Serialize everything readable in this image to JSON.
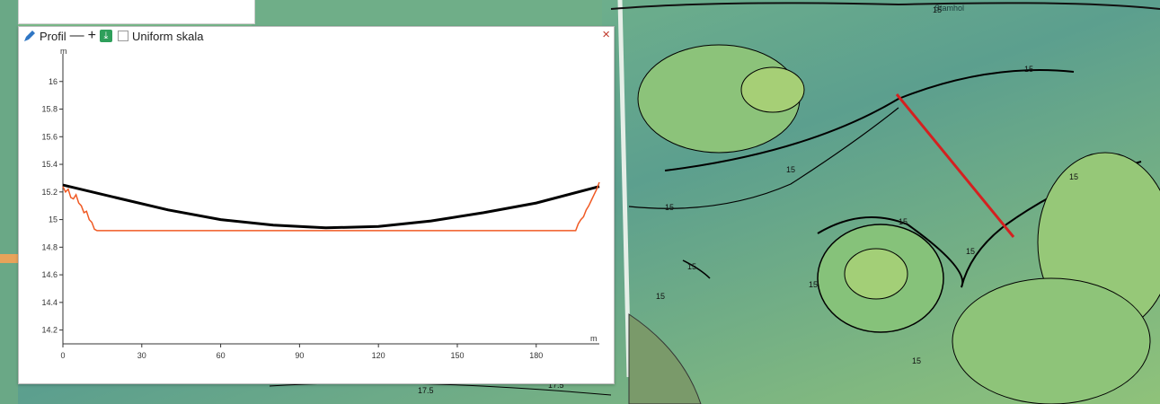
{
  "profile_panel": {
    "title": "Profil",
    "zoom_out_symbol": "—",
    "zoom_in_symbol": "+",
    "uniform_scale_label": "Uniform skala",
    "uniform_scale_checked": false,
    "icons": {
      "edit": "pencil-icon",
      "download": "download-icon",
      "close": "close-icon"
    },
    "close_symbol": "×"
  },
  "chart_data": {
    "type": "line",
    "ylabel": "m",
    "xlabel": "m",
    "xlim": [
      0,
      204
    ],
    "ylim": [
      14.1,
      16.2
    ],
    "x_ticks": [
      0,
      30,
      60,
      90,
      120,
      150,
      180
    ],
    "y_ticks": [
      14.2,
      14.4,
      14.6,
      14.8,
      15,
      15.2,
      15.4,
      15.6,
      15.8,
      16
    ],
    "series": [
      {
        "color": "#000000",
        "x": [
          0,
          20,
          40,
          60,
          80,
          100,
          120,
          140,
          160,
          180,
          204
        ],
        "y": [
          15.25,
          15.16,
          15.07,
          15.0,
          14.96,
          14.94,
          14.95,
          14.99,
          15.05,
          15.12,
          15.24
        ]
      },
      {
        "color": "#f05a24",
        "x": [
          0,
          1,
          2,
          3,
          4,
          5,
          6,
          7,
          8,
          9,
          10,
          11,
          12,
          13,
          195,
          196,
          197,
          198,
          199,
          200,
          201,
          202,
          203,
          204
        ],
        "y": [
          15.24,
          15.2,
          15.22,
          15.16,
          15.15,
          15.18,
          15.12,
          15.1,
          15.05,
          15.06,
          15.0,
          14.98,
          14.93,
          14.92,
          14.92,
          14.97,
          15.0,
          15.02,
          15.07,
          15.1,
          15.14,
          15.18,
          15.22,
          15.27
        ]
      }
    ]
  },
  "map": {
    "contour_labels": [
      "15",
      "15",
      "15",
      "15",
      "15",
      "15",
      "15",
      "15",
      "15",
      "15",
      "15",
      "17.5",
      "17.5"
    ],
    "profile_line_color": "#d42020",
    "street_label": "Stamhol"
  }
}
